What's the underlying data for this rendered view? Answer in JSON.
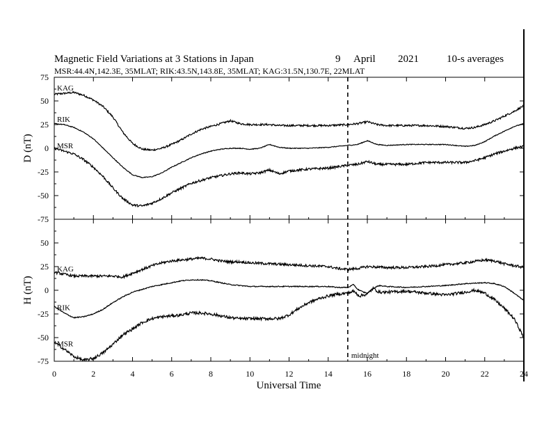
{
  "header": {
    "title": "Magnetic Field Variations at 3 Stations in Japan",
    "day": "9",
    "month": "April",
    "year": "2021",
    "averaging": "10-s averages",
    "stations_line": "MSR:44.4N,142.3E, 35MLAT;  RIK:43.5N,143.8E, 35MLAT;  KAG:31.5N,130.7E, 22MLAT"
  },
  "chart_data": [
    {
      "type": "line",
      "panel": "D",
      "ylabel": "D (nT)",
      "ylim": [
        -75,
        75
      ],
      "yticks": [
        75,
        50,
        25,
        0,
        -25,
        -50,
        -75
      ],
      "xlim": [
        0,
        24
      ],
      "series": [
        {
          "name": "KAG",
          "noise": 1.0,
          "points": [
            [
              0,
              57
            ],
            [
              0.5,
              58
            ],
            [
              1,
              59
            ],
            [
              1.5,
              56
            ],
            [
              2,
              51
            ],
            [
              2.5,
              44
            ],
            [
              3,
              33
            ],
            [
              3.5,
              17
            ],
            [
              4,
              5
            ],
            [
              4.5,
              -1
            ],
            [
              5,
              -2
            ],
            [
              5.5,
              0
            ],
            [
              6,
              4
            ],
            [
              6.5,
              9
            ],
            [
              7,
              15
            ],
            [
              7.5,
              20
            ],
            [
              8,
              23
            ],
            [
              8.5,
              26
            ],
            [
              9,
              29
            ],
            [
              9.5,
              26
            ],
            [
              10,
              25
            ],
            [
              10.5,
              25
            ],
            [
              11,
              25
            ],
            [
              11.5,
              24
            ],
            [
              12,
              24
            ],
            [
              13,
              24
            ],
            [
              14,
              24
            ],
            [
              15,
              25
            ],
            [
              15.5,
              26
            ],
            [
              16,
              28
            ],
            [
              16.5,
              25
            ],
            [
              17,
              24
            ],
            [
              18,
              24
            ],
            [
              19,
              24
            ],
            [
              20,
              23
            ],
            [
              21,
              21
            ],
            [
              21.5,
              22
            ],
            [
              22,
              25
            ],
            [
              22.5,
              29
            ],
            [
              23,
              34
            ],
            [
              23.5,
              39
            ],
            [
              24,
              45
            ]
          ]
        },
        {
          "name": "RIK",
          "noise": 0.4,
          "points": [
            [
              0,
              26
            ],
            [
              0.5,
              25
            ],
            [
              1,
              22
            ],
            [
              1.5,
              17
            ],
            [
              2,
              10
            ],
            [
              2.5,
              0
            ],
            [
              3,
              -10
            ],
            [
              3.5,
              -20
            ],
            [
              4,
              -28
            ],
            [
              4.5,
              -31
            ],
            [
              5,
              -30
            ],
            [
              5.5,
              -26
            ],
            [
              6,
              -20
            ],
            [
              6.5,
              -15
            ],
            [
              7,
              -10
            ],
            [
              7.5,
              -6
            ],
            [
              8,
              -3
            ],
            [
              8.5,
              -1
            ],
            [
              9,
              0
            ],
            [
              9.5,
              0
            ],
            [
              10,
              -1
            ],
            [
              10.5,
              0
            ],
            [
              11,
              4
            ],
            [
              11.5,
              1
            ],
            [
              12,
              0
            ],
            [
              13,
              0
            ],
            [
              14,
              1
            ],
            [
              15,
              3
            ],
            [
              15.5,
              4
            ],
            [
              16,
              8
            ],
            [
              16.5,
              4
            ],
            [
              17,
              3
            ],
            [
              18,
              4
            ],
            [
              19,
              4
            ],
            [
              20,
              4
            ],
            [
              21,
              2
            ],
            [
              21.5,
              3
            ],
            [
              22,
              7
            ],
            [
              22.5,
              13
            ],
            [
              23,
              18
            ],
            [
              23.5,
              23
            ],
            [
              24,
              26
            ]
          ]
        },
        {
          "name": "MSR",
          "noise": 1.2,
          "points": [
            [
              0,
              0
            ],
            [
              0.5,
              -3
            ],
            [
              1,
              -6
            ],
            [
              1.5,
              -12
            ],
            [
              2,
              -20
            ],
            [
              2.5,
              -30
            ],
            [
              3,
              -42
            ],
            [
              3.5,
              -53
            ],
            [
              4,
              -60
            ],
            [
              4.5,
              -61
            ],
            [
              5,
              -58
            ],
            [
              5.5,
              -53
            ],
            [
              6,
              -47
            ],
            [
              6.5,
              -42
            ],
            [
              7,
              -37
            ],
            [
              7.5,
              -34
            ],
            [
              8,
              -31
            ],
            [
              8.5,
              -29
            ],
            [
              9,
              -27
            ],
            [
              9.5,
              -26
            ],
            [
              10,
              -27
            ],
            [
              10.5,
              -26
            ],
            [
              11,
              -23
            ],
            [
              11.5,
              -27
            ],
            [
              12,
              -24
            ],
            [
              13,
              -22
            ],
            [
              14,
              -21
            ],
            [
              15,
              -18
            ],
            [
              15.5,
              -17
            ],
            [
              16,
              -14
            ],
            [
              16.5,
              -17
            ],
            [
              17,
              -17
            ],
            [
              18,
              -17
            ],
            [
              19,
              -15
            ],
            [
              20,
              -15
            ],
            [
              21,
              -15
            ],
            [
              21.5,
              -13
            ],
            [
              22,
              -10
            ],
            [
              22.5,
              -6
            ],
            [
              23,
              -3
            ],
            [
              23.5,
              0
            ],
            [
              24,
              2
            ]
          ]
        }
      ]
    },
    {
      "type": "line",
      "panel": "H",
      "ylabel": "H (nT)",
      "ylim": [
        -75,
        75
      ],
      "yticks": [
        75,
        50,
        25,
        0,
        -25,
        -50,
        -75
      ],
      "xlim": [
        0,
        24
      ],
      "series": [
        {
          "name": "KAG",
          "noise": 1.3,
          "points": [
            [
              0,
              19
            ],
            [
              0.5,
              17
            ],
            [
              1,
              15
            ],
            [
              1.5,
              15
            ],
            [
              2,
              15
            ],
            [
              2.5,
              15
            ],
            [
              3,
              15
            ],
            [
              3.5,
              14
            ],
            [
              4,
              18
            ],
            [
              4.5,
              22
            ],
            [
              5,
              26
            ],
            [
              5.5,
              29
            ],
            [
              6,
              31
            ],
            [
              6.5,
              32
            ],
            [
              7,
              33
            ],
            [
              7.5,
              34
            ],
            [
              8,
              33
            ],
            [
              8.5,
              31
            ],
            [
              9,
              30
            ],
            [
              9.5,
              30
            ],
            [
              10,
              29
            ],
            [
              11,
              28
            ],
            [
              12,
              27
            ],
            [
              13,
              26
            ],
            [
              14,
              25
            ],
            [
              14.5,
              23
            ],
            [
              15,
              22
            ],
            [
              15.5,
              23
            ],
            [
              16,
              25
            ],
            [
              17,
              24
            ],
            [
              18,
              24
            ],
            [
              19,
              25
            ],
            [
              20,
              27
            ],
            [
              21,
              29
            ],
            [
              22,
              32
            ],
            [
              22.5,
              31
            ],
            [
              23,
              28
            ],
            [
              23.5,
              26
            ],
            [
              24,
              24
            ]
          ]
        },
        {
          "name": "RIK",
          "noise": 0.5,
          "points": [
            [
              0,
              -17
            ],
            [
              0.5,
              -24
            ],
            [
              1,
              -29
            ],
            [
              1.5,
              -28
            ],
            [
              2,
              -25
            ],
            [
              2.5,
              -20
            ],
            [
              3,
              -13
            ],
            [
              3.5,
              -7
            ],
            [
              4,
              -2
            ],
            [
              4.5,
              1
            ],
            [
              5,
              4
            ],
            [
              5.5,
              6
            ],
            [
              6,
              8
            ],
            [
              6.5,
              10
            ],
            [
              7,
              11
            ],
            [
              7.5,
              11
            ],
            [
              8,
              10
            ],
            [
              8.5,
              8
            ],
            [
              9,
              6
            ],
            [
              9.5,
              5
            ],
            [
              10,
              4
            ],
            [
              11,
              4
            ],
            [
              12,
              4
            ],
            [
              13,
              4
            ],
            [
              14,
              4
            ],
            [
              14.5,
              3
            ],
            [
              15,
              3
            ],
            [
              15.3,
              6
            ],
            [
              15.5,
              1
            ],
            [
              15.8,
              -2
            ],
            [
              16,
              -3
            ],
            [
              16.3,
              2
            ],
            [
              16.6,
              5
            ],
            [
              17,
              4
            ],
            [
              18,
              3
            ],
            [
              19,
              4
            ],
            [
              20,
              5
            ],
            [
              21,
              7
            ],
            [
              22,
              8
            ],
            [
              22.5,
              7
            ],
            [
              23,
              4
            ],
            [
              23.5,
              -3
            ],
            [
              24,
              -11
            ]
          ]
        },
        {
          "name": "MSR",
          "noise": 1.5,
          "points": [
            [
              0,
              -55
            ],
            [
              0.5,
              -62
            ],
            [
              1,
              -70
            ],
            [
              1.5,
              -74
            ],
            [
              2,
              -72
            ],
            [
              2.5,
              -66
            ],
            [
              3,
              -57
            ],
            [
              3.5,
              -47
            ],
            [
              4,
              -41
            ],
            [
              4.5,
              -34
            ],
            [
              5,
              -30
            ],
            [
              5.5,
              -28
            ],
            [
              6,
              -27
            ],
            [
              6.5,
              -26
            ],
            [
              7,
              -24
            ],
            [
              7.5,
              -24
            ],
            [
              8,
              -25
            ],
            [
              8.5,
              -27
            ],
            [
              9,
              -29
            ],
            [
              9.5,
              -30
            ],
            [
              10,
              -30
            ],
            [
              11,
              -30
            ],
            [
              11.5,
              -30
            ],
            [
              12,
              -26
            ],
            [
              12.5,
              -19
            ],
            [
              13,
              -13
            ],
            [
              13.5,
              -9
            ],
            [
              14,
              -6
            ],
            [
              14.5,
              -4
            ],
            [
              15,
              -3
            ],
            [
              15.3,
              -1
            ],
            [
              15.6,
              -6
            ],
            [
              16,
              -4
            ],
            [
              16.3,
              2
            ],
            [
              16.6,
              -2
            ],
            [
              17,
              -2
            ],
            [
              18,
              -1
            ],
            [
              19,
              -3
            ],
            [
              20,
              -5
            ],
            [
              21,
              -2
            ],
            [
              21.5,
              0
            ],
            [
              22,
              -3
            ],
            [
              22.5,
              -10
            ],
            [
              23,
              -19
            ],
            [
              23.5,
              -30
            ],
            [
              24,
              -50
            ]
          ]
        }
      ]
    }
  ],
  "x_axis": {
    "label": "Universal Time",
    "xlim": [
      0,
      24
    ],
    "ticks": [
      0,
      2,
      4,
      6,
      8,
      10,
      12,
      14,
      16,
      18,
      20,
      22,
      24
    ]
  },
  "annotation": {
    "label": "midnight",
    "x": 15
  },
  "colors": {
    "line": "#000000",
    "background": "#ffffff"
  }
}
